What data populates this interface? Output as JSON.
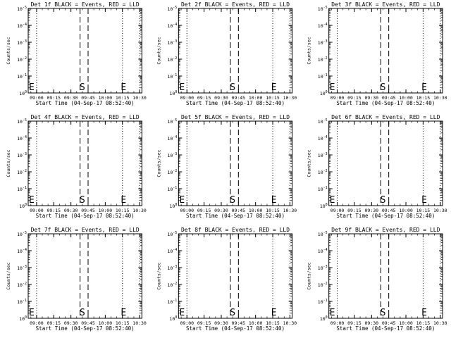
{
  "chart_data": [
    {
      "type": "line",
      "title": "Det 1f BLACK = Events, RED = LLD",
      "xlabel": "Start Time (04-Sep-17 08:52:40)",
      "ylabel": "Counts/sec",
      "xticks": [
        "09:00",
        "09:15",
        "09:30",
        "09:45",
        "10:00",
        "10:15",
        "10:30"
      ],
      "xlim": [
        "08:52:40",
        "10:32:00"
      ],
      "yticks": [
        "10^0",
        "10^-1",
        "10^-2",
        "10^-3",
        "10^-4",
        "10^-5"
      ],
      "ylim": [
        1,
        100000
      ],
      "yscale": "log",
      "dotted_lines": [
        "09:00",
        "10:15",
        "10:30"
      ],
      "dashed_lines": [
        "09:38",
        "09:45"
      ],
      "markers": [
        {
          "label": "E",
          "x": "08:52:40"
        },
        {
          "label": "S",
          "x": "09:40"
        },
        {
          "label": "E",
          "x": "10:16"
        }
      ],
      "series": []
    },
    {
      "type": "line",
      "title": "Det 2f BLACK = Events, RED = LLD",
      "xlabel": "Start Time (04-Sep-17 08:52:40)",
      "ylabel": "Counts/sec",
      "xticks": [
        "09:00",
        "09:15",
        "09:30",
        "09:45",
        "10:00",
        "10:15",
        "10:30"
      ],
      "xlim": [
        "08:52:40",
        "10:32:00"
      ],
      "yticks": [
        "10^0",
        "10^-1",
        "10^-2",
        "10^-3",
        "10^-4",
        "10^-5"
      ],
      "ylim": [
        1,
        100000
      ],
      "yscale": "log",
      "dotted_lines": [
        "09:00",
        "10:15",
        "10:30"
      ],
      "dashed_lines": [
        "09:38",
        "09:45"
      ],
      "markers": [
        {
          "label": "E",
          "x": "08:52:40"
        },
        {
          "label": "S",
          "x": "09:40"
        },
        {
          "label": "E",
          "x": "10:16"
        }
      ],
      "series": []
    },
    {
      "type": "line",
      "title": "Det 3f BLACK = Events, RED = LLD",
      "xlabel": "Start Time (04-Sep-17 08:52:40)",
      "ylabel": "Counts/sec",
      "xticks": [
        "09:00",
        "09:15",
        "09:30",
        "09:45",
        "10:00",
        "10:15",
        "10:30"
      ],
      "xlim": [
        "08:52:40",
        "10:32:00"
      ],
      "yticks": [
        "10^0",
        "10^-1",
        "10^-2",
        "10^-3",
        "10^-4",
        "10^-5"
      ],
      "ylim": [
        1,
        100000
      ],
      "yscale": "log",
      "dotted_lines": [
        "09:00",
        "10:15",
        "10:30"
      ],
      "dashed_lines": [
        "09:38",
        "09:45"
      ],
      "markers": [
        {
          "label": "E",
          "x": "08:52:40"
        },
        {
          "label": "S",
          "x": "09:40"
        },
        {
          "label": "E",
          "x": "10:16"
        }
      ],
      "series": []
    },
    {
      "type": "line",
      "title": "Det 4f BLACK = Events, RED = LLD",
      "xlabel": "Start Time (04-Sep-17 08:52:40)",
      "ylabel": "Counts/sec",
      "xticks": [
        "09:00",
        "09:15",
        "09:30",
        "09:45",
        "10:00",
        "10:15",
        "10:30"
      ],
      "xlim": [
        "08:52:40",
        "10:32:00"
      ],
      "yticks": [
        "10^0",
        "10^-1",
        "10^-2",
        "10^-3",
        "10^-4",
        "10^-5"
      ],
      "ylim": [
        1,
        100000
      ],
      "yscale": "log",
      "dotted_lines": [
        "09:00",
        "10:15",
        "10:30"
      ],
      "dashed_lines": [
        "09:38",
        "09:45"
      ],
      "markers": [
        {
          "label": "E",
          "x": "08:52:40"
        },
        {
          "label": "S",
          "x": "09:40"
        },
        {
          "label": "E",
          "x": "10:16"
        }
      ],
      "series": []
    },
    {
      "type": "line",
      "title": "Det 5f BLACK = Events, RED = LLD",
      "xlabel": "Start Time (04-Sep-17 08:52:40)",
      "ylabel": "Counts/sec",
      "xticks": [
        "09:00",
        "09:15",
        "09:30",
        "09:45",
        "10:00",
        "10:15",
        "10:30"
      ],
      "xlim": [
        "08:52:40",
        "10:32:00"
      ],
      "yticks": [
        "10^0",
        "10^-1",
        "10^-2",
        "10^-3",
        "10^-4",
        "10^-5"
      ],
      "ylim": [
        1,
        100000
      ],
      "yscale": "log",
      "dotted_lines": [
        "09:00",
        "10:15",
        "10:30"
      ],
      "dashed_lines": [
        "09:38",
        "09:45"
      ],
      "markers": [
        {
          "label": "E",
          "x": "08:52:40"
        },
        {
          "label": "S",
          "x": "09:40"
        },
        {
          "label": "E",
          "x": "10:16"
        }
      ],
      "series": []
    },
    {
      "type": "line",
      "title": "Det 6f BLACK = Events, RED = LLD",
      "xlabel": "Start Time (04-Sep-17 08:52:40)",
      "ylabel": "Counts/sec",
      "xticks": [
        "09:00",
        "09:15",
        "09:30",
        "09:45",
        "10:00",
        "10:15",
        "10:30"
      ],
      "xlim": [
        "08:52:40",
        "10:32:00"
      ],
      "yticks": [
        "10^0",
        "10^-1",
        "10^-2",
        "10^-3",
        "10^-4",
        "10^-5"
      ],
      "ylim": [
        1,
        100000
      ],
      "yscale": "log",
      "dotted_lines": [
        "09:00",
        "10:15",
        "10:30"
      ],
      "dashed_lines": [
        "09:38",
        "09:45"
      ],
      "markers": [
        {
          "label": "E",
          "x": "08:52:40"
        },
        {
          "label": "S",
          "x": "09:40"
        },
        {
          "label": "E",
          "x": "10:16"
        }
      ],
      "series": []
    },
    {
      "type": "line",
      "title": "Det 7f BLACK = Events, RED = LLD",
      "xlabel": "Start Time (04-Sep-17 08:52:40)",
      "ylabel": "Counts/sec",
      "xticks": [
        "09:00",
        "09:15",
        "09:30",
        "09:45",
        "10:00",
        "10:15",
        "10:30"
      ],
      "xlim": [
        "08:52:40",
        "10:32:00"
      ],
      "yticks": [
        "10^0",
        "10^-1",
        "10^-2",
        "10^-3",
        "10^-4",
        "10^-5"
      ],
      "ylim": [
        1,
        100000
      ],
      "yscale": "log",
      "dotted_lines": [
        "09:00",
        "10:15",
        "10:30"
      ],
      "dashed_lines": [
        "09:38",
        "09:45"
      ],
      "markers": [
        {
          "label": "E",
          "x": "08:52:40"
        },
        {
          "label": "S",
          "x": "09:40"
        },
        {
          "label": "E",
          "x": "10:16"
        }
      ],
      "series": []
    },
    {
      "type": "line",
      "title": "Det 8f BLACK = Events, RED = LLD",
      "xlabel": "Start Time (04-Sep-17 08:52:40)",
      "ylabel": "Counts/sec",
      "xticks": [
        "09:00",
        "09:15",
        "09:30",
        "09:45",
        "10:00",
        "10:15",
        "10:30"
      ],
      "xlim": [
        "08:52:40",
        "10:32:00"
      ],
      "yticks": [
        "10^0",
        "10^-1",
        "10^-2",
        "10^-3",
        "10^-4",
        "10^-5"
      ],
      "ylim": [
        1,
        100000
      ],
      "yscale": "log",
      "dotted_lines": [
        "09:00",
        "10:15",
        "10:30"
      ],
      "dashed_lines": [
        "09:38",
        "09:45"
      ],
      "markers": [
        {
          "label": "E",
          "x": "08:52:40"
        },
        {
          "label": "S",
          "x": "09:40"
        },
        {
          "label": "E",
          "x": "10:16"
        }
      ],
      "series": []
    },
    {
      "type": "line",
      "title": "Det 9f BLACK = Events, RED = LLD",
      "xlabel": "Start Time (04-Sep-17 08:52:40)",
      "ylabel": "Counts/sec",
      "xticks": [
        "09:00",
        "09:15",
        "09:30",
        "09:45",
        "10:00",
        "10:15",
        "10:30"
      ],
      "xlim": [
        "08:52:40",
        "10:32:00"
      ],
      "yticks": [
        "10^0",
        "10^-1",
        "10^-2",
        "10^-3",
        "10^-4",
        "10^-5"
      ],
      "ylim": [
        1,
        100000
      ],
      "yscale": "log",
      "dotted_lines": [
        "09:00",
        "10:15",
        "10:30"
      ],
      "dashed_lines": [
        "09:38",
        "09:45"
      ],
      "markers": [
        {
          "label": "E",
          "x": "08:52:40"
        },
        {
          "label": "S",
          "x": "09:40"
        },
        {
          "label": "E",
          "x": "10:16"
        }
      ],
      "series": []
    }
  ]
}
